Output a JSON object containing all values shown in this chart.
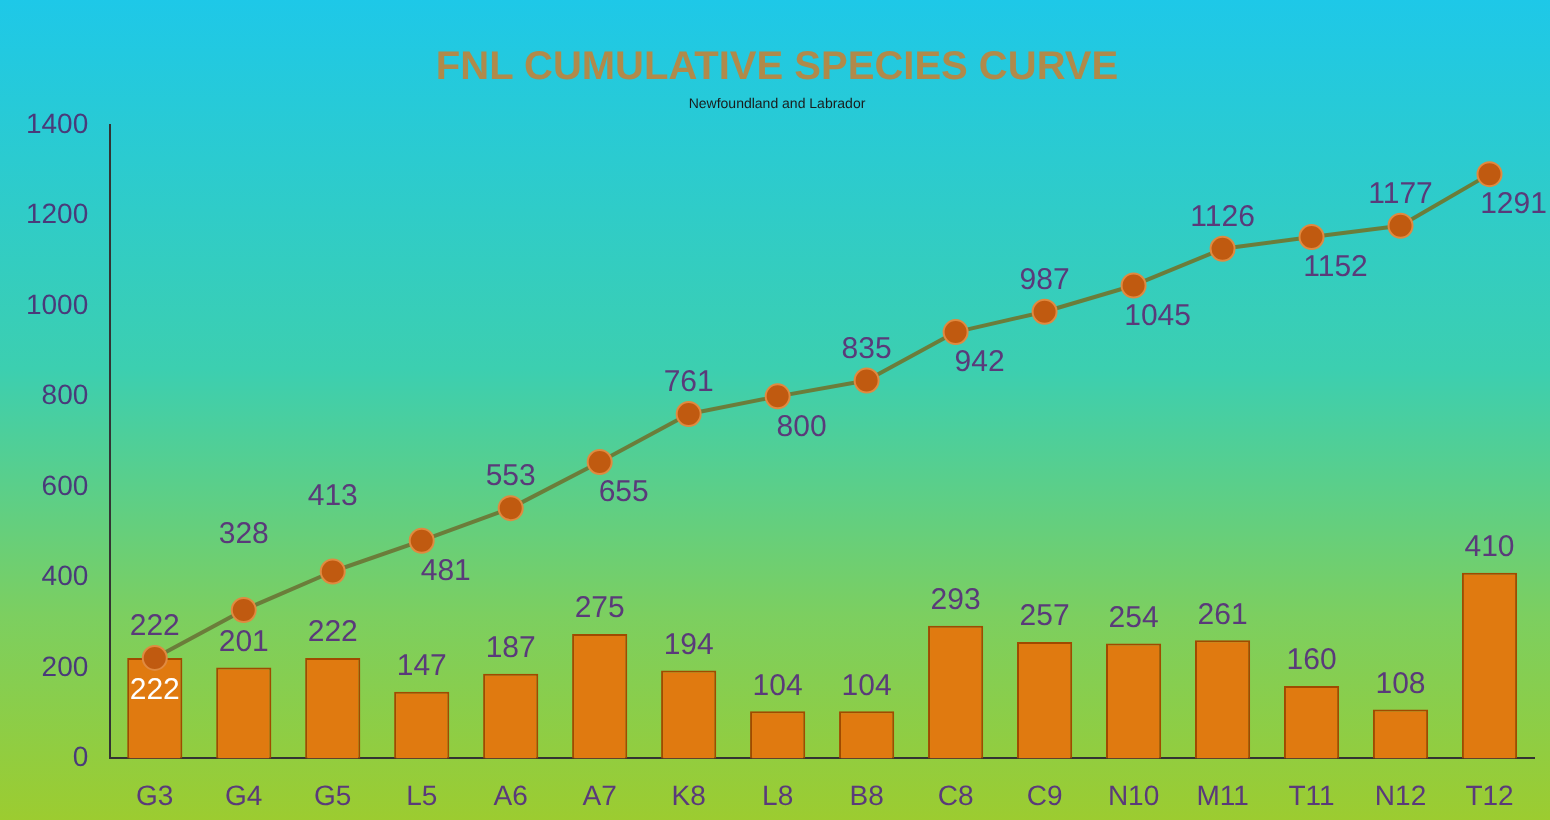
{
  "chart_data": {
    "type": "bar",
    "title": "FNL CUMULATIVE SPECIES CURVE",
    "subtitle": "Newfoundland and Labrador",
    "categories": [
      "G3",
      "G4",
      "G5",
      "L5",
      "A6",
      "A7",
      "K8",
      "L8",
      "B8",
      "C8",
      "C9",
      "N10",
      "M11",
      "T11",
      "N12",
      "T12"
    ],
    "series": [
      {
        "color": "#e07a10",
        "values": [
          222,
          201,
          222,
          147,
          187,
          275,
          194,
          104,
          104,
          293,
          257,
          254,
          261,
          160,
          108,
          410
        ]
      },
      {
        "type": "line",
        "color": "#6b7d3a",
        "marker": "circle",
        "values": [
          222,
          328,
          413,
          481,
          553,
          655,
          761,
          800,
          835,
          942,
          987,
          1045,
          1126,
          1152,
          1177,
          1291
        ]
      }
    ],
    "ylim": [
      0,
      1400
    ],
    "yticks": [
      0,
      200,
      400,
      600,
      800,
      1000,
      1200,
      1400
    ],
    "grid": false,
    "legend": false,
    "data_labels": true
  }
}
